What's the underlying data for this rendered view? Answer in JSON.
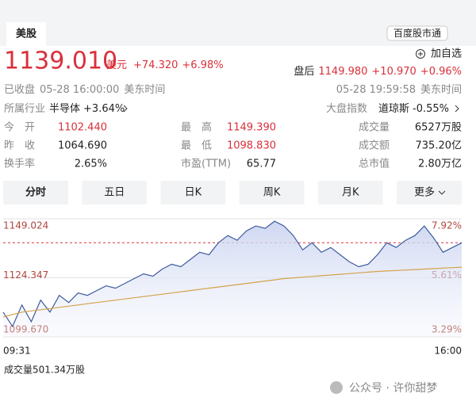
{
  "header": {
    "tab": "美股",
    "button": "百度股市通"
  },
  "quote": {
    "price": "1139.010",
    "currency": "美元",
    "change": "+74.320",
    "change_pct": "+6.98%",
    "add": "加自选",
    "after_label": "盘后",
    "after_price": "1149.980",
    "after_change": "+10.970",
    "after_pct": "+0.96%",
    "status": "已收盘",
    "close_time": "05-28 16:00:00",
    "close_tz": "美东时间",
    "after_time": "05-28 19:59:58",
    "after_tz": "美东时间",
    "industry_label": "所属行业",
    "industry": "半导体",
    "industry_pct": "+3.64%",
    "index_label": "大盘指数",
    "index": "道琼斯",
    "index_pct": "-0.55%"
  },
  "stats": [
    [
      "今开",
      "1102.440"
    ],
    [
      "最高",
      "1149.390"
    ],
    [
      "成交量",
      "6527万股"
    ],
    [
      "昨收",
      "1064.690"
    ],
    [
      "最低",
      "1098.830"
    ],
    [
      "成交额",
      "735.20亿"
    ],
    [
      "换手率",
      "2.65%"
    ],
    [
      "市盈(TTM)",
      "65.77"
    ],
    [
      "总市值",
      "2.80万亿"
    ]
  ],
  "tabs": [
    "分时",
    "五日",
    "日K",
    "周K",
    "月K",
    "更多"
  ],
  "chart_data": {
    "type": "line",
    "categories": [
      "09:31",
      null,
      null,
      null,
      null,
      null,
      null,
      null,
      null,
      null,
      null,
      null,
      null,
      null,
      null,
      null,
      null,
      null,
      null,
      null,
      null,
      null,
      null,
      null,
      null,
      null,
      null,
      null,
      null,
      null,
      null,
      null,
      null,
      null,
      null,
      null,
      null,
      null,
      null,
      null,
      null,
      null,
      null,
      null,
      null,
      null,
      null,
      null,
      null,
      "16:00"
    ],
    "series": [
      {
        "color": "#3d5a9e",
        "values": [
          1110,
          1104,
          1113,
          1106,
          1115,
          1110,
          1117,
          1114,
          1118,
          1117,
          1119,
          1121,
          1120,
          1122,
          1124,
          1126,
          1125,
          1128,
          1130,
          1129,
          1132,
          1135,
          1134,
          1139,
          1142,
          1140,
          1144,
          1146,
          1145,
          1148,
          1146,
          1142,
          1136,
          1139,
          1135,
          1137,
          1134,
          1131,
          1129,
          1130,
          1134,
          1139,
          1137,
          1140,
          1142,
          1146,
          1141,
          1135,
          1137,
          1139
        ]
      },
      {
        "color": "#d4a24a",
        "values": [
          1108,
          1109,
          1110,
          1110.5,
          1111,
          1111.5,
          1112,
          1112.5,
          1113,
          1113.5,
          1114,
          1114.5,
          1115,
          1115.5,
          1116,
          1116.5,
          1117,
          1117.5,
          1118,
          1118.5,
          1119,
          1119.5,
          1120,
          1120.5,
          1121,
          1121.5,
          1122,
          1122.5,
          1123,
          1123.5,
          1124,
          1124.3,
          1124.6,
          1124.9,
          1125.2,
          1125.5,
          1125.8,
          1126.1,
          1126.4,
          1126.7,
          1127,
          1127.2,
          1127.4,
          1127.6,
          1127.8,
          1128,
          1128.2,
          1128.4,
          1128.6,
          1128.8
        ]
      }
    ],
    "ylim": [
      1099.67,
      1149.024
    ],
    "yticks": [
      {
        "value": 1149.024,
        "label": "1149.024"
      },
      {
        "value": 1124.347,
        "label": "1124.347"
      },
      {
        "value": 1099.67,
        "label": "1099.670"
      }
    ],
    "y2lim": [
      3.29,
      7.92
    ],
    "y2ticks": [
      {
        "value": 7.92,
        "label": "7.92%"
      },
      {
        "value": 5.61,
        "label": "5.61%"
      },
      {
        "value": 3.29,
        "label": "3.29%"
      }
    ],
    "reference_line": 1139.01,
    "reference_color": "#d9303b",
    "grid": true
  },
  "volume_label": "成交量501.34万股",
  "watermark": "公众号 · 许你甜梦"
}
